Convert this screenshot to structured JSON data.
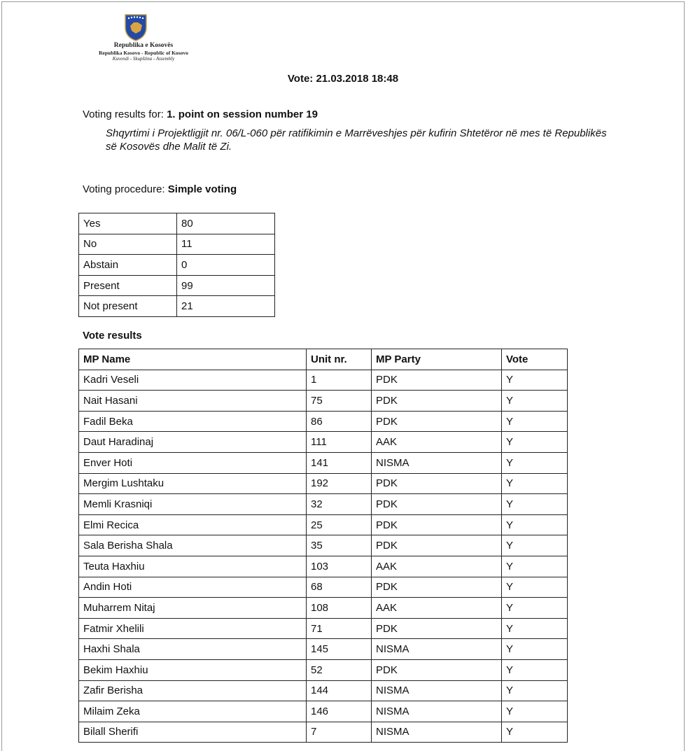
{
  "header": {
    "org_line1": "Republika e Kosovës",
    "org_line2": "Republika Kosovo - Republic of Kosovo",
    "org_line3": "Kuvendi - Skupština - Assembly",
    "vote_title": "Vote: 21.03.2018 18:48"
  },
  "agenda": {
    "label": "Voting results for:",
    "point": "1. point on session number 19",
    "description": "Shqyrtimi i Projektligjit nr. 06/L-060 për ratifikimin e Marrëveshjes për kufirin Shtetëror në mes të Republikës së Kosovës dhe Malit të Zi."
  },
  "procedure": {
    "label": "Voting procedure:",
    "value": "Simple voting"
  },
  "summary": [
    {
      "label": "Yes",
      "value": "80"
    },
    {
      "label": "No",
      "value": "11"
    },
    {
      "label": "Abstain",
      "value": "0"
    },
    {
      "label": "Present",
      "value": "99"
    },
    {
      "label": "Not present",
      "value": "21"
    }
  ],
  "vote_results": {
    "title": "Vote results",
    "columns": [
      "MP Name",
      "Unit nr.",
      "MP Party",
      "Vote"
    ],
    "rows": [
      [
        "Kadri Veseli",
        "1",
        "PDK",
        "Y"
      ],
      [
        "Nait Hasani",
        "75",
        "PDK",
        "Y"
      ],
      [
        "Fadil Beka",
        "86",
        "PDK",
        "Y"
      ],
      [
        "Daut Haradinaj",
        "111",
        "AAK",
        "Y"
      ],
      [
        "Enver Hoti",
        "141",
        "NISMA",
        "Y"
      ],
      [
        "Mergim Lushtaku",
        "192",
        "PDK",
        "Y"
      ],
      [
        "Memli Krasniqi",
        "32",
        "PDK",
        "Y"
      ],
      [
        "Elmi Recica",
        "25",
        "PDK",
        "Y"
      ],
      [
        "Sala Berisha Shala",
        "35",
        "PDK",
        "Y"
      ],
      [
        "Teuta Haxhiu",
        "103",
        "AAK",
        "Y"
      ],
      [
        "Andin Hoti",
        "68",
        "PDK",
        "Y"
      ],
      [
        "Muharrem Nitaj",
        "108",
        "AAK",
        "Y"
      ],
      [
        "Fatmir Xhelili",
        "71",
        "PDK",
        "Y"
      ],
      [
        "Haxhi Shala",
        "145",
        "NISMA",
        "Y"
      ],
      [
        "Bekim Haxhiu",
        "52",
        "PDK",
        "Y"
      ],
      [
        "Zafir Berisha",
        "144",
        "NISMA",
        "Y"
      ],
      [
        "Milaim Zeka",
        "146",
        "NISMA",
        "Y"
      ],
      [
        "Bilall Sherifi",
        "7",
        "NISMA",
        "Y"
      ]
    ]
  },
  "colors": {
    "crest_blue": "#244aa5",
    "crest_gold": "#d9a441"
  }
}
